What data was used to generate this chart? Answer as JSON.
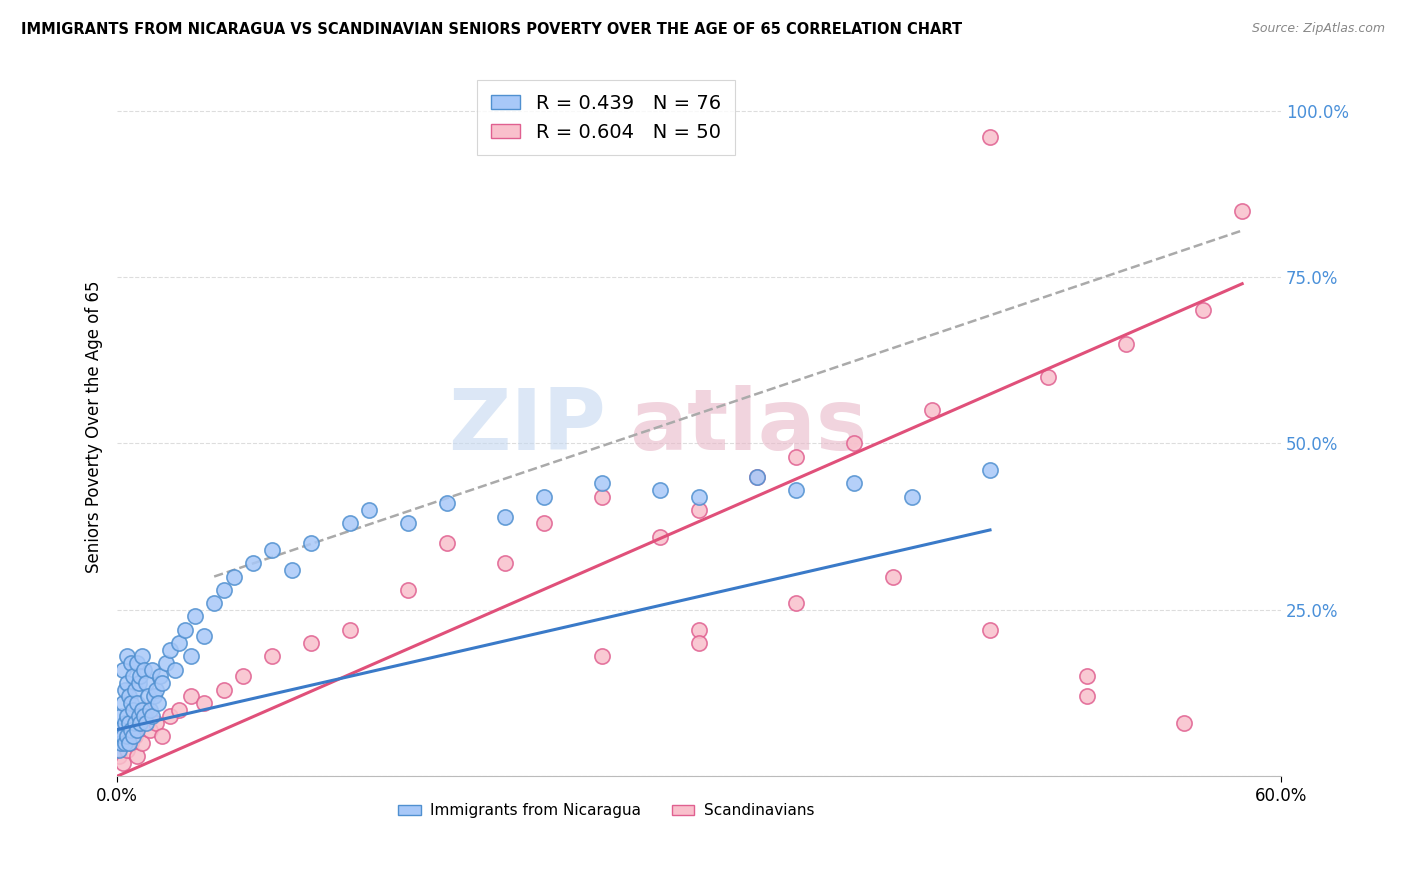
{
  "title": "IMMIGRANTS FROM NICARAGUA VS SCANDINAVIAN SENIORS POVERTY OVER THE AGE OF 65 CORRELATION CHART",
  "source": "Source: ZipAtlas.com",
  "ylabel": "Seniors Poverty Over the Age of 65",
  "y_ticks": [
    0.0,
    0.25,
    0.5,
    0.75,
    1.0
  ],
  "y_tick_labels": [
    "",
    "25.0%",
    "50.0%",
    "75.0%",
    "100.0%"
  ],
  "legend1_label": "R = 0.439   N = 76",
  "legend2_label": "R = 0.604   N = 50",
  "blue_face_color": "#a8c8f8",
  "pink_face_color": "#f9c0cc",
  "blue_edge_color": "#5090d0",
  "pink_edge_color": "#e06090",
  "blue_line_color": "#3a7ac8",
  "pink_line_color": "#e0507a",
  "gray_line_color": "#aaaaaa",
  "watermark_text": "ZIPatlas",
  "watermark_color_blue": "#c5d8f0",
  "watermark_color_pink": "#e8b8c8",
  "blue_scatter_x": [
    0.001,
    0.001,
    0.002,
    0.002,
    0.003,
    0.003,
    0.003,
    0.004,
    0.004,
    0.004,
    0.005,
    0.005,
    0.005,
    0.005,
    0.006,
    0.006,
    0.006,
    0.007,
    0.007,
    0.007,
    0.008,
    0.008,
    0.008,
    0.009,
    0.009,
    0.01,
    0.01,
    0.01,
    0.011,
    0.011,
    0.012,
    0.012,
    0.013,
    0.013,
    0.014,
    0.014,
    0.015,
    0.015,
    0.016,
    0.017,
    0.018,
    0.018,
    0.019,
    0.02,
    0.021,
    0.022,
    0.023,
    0.025,
    0.027,
    0.03,
    0.032,
    0.035,
    0.038,
    0.04,
    0.045,
    0.05,
    0.055,
    0.06,
    0.07,
    0.08,
    0.09,
    0.1,
    0.12,
    0.13,
    0.15,
    0.17,
    0.2,
    0.22,
    0.25,
    0.28,
    0.3,
    0.33,
    0.35,
    0.38,
    0.41,
    0.45
  ],
  "blue_scatter_y": [
    0.04,
    0.07,
    0.05,
    0.09,
    0.06,
    0.11,
    0.16,
    0.05,
    0.08,
    0.13,
    0.06,
    0.09,
    0.14,
    0.18,
    0.05,
    0.08,
    0.12,
    0.07,
    0.11,
    0.17,
    0.06,
    0.1,
    0.15,
    0.08,
    0.13,
    0.07,
    0.11,
    0.17,
    0.09,
    0.14,
    0.08,
    0.15,
    0.1,
    0.18,
    0.09,
    0.16,
    0.08,
    0.14,
    0.12,
    0.1,
    0.09,
    0.16,
    0.12,
    0.13,
    0.11,
    0.15,
    0.14,
    0.17,
    0.19,
    0.16,
    0.2,
    0.22,
    0.18,
    0.24,
    0.21,
    0.26,
    0.28,
    0.3,
    0.32,
    0.34,
    0.31,
    0.35,
    0.38,
    0.4,
    0.38,
    0.41,
    0.39,
    0.42,
    0.44,
    0.43,
    0.42,
    0.45,
    0.43,
    0.44,
    0.42,
    0.46
  ],
  "pink_scatter_x": [
    0.001,
    0.002,
    0.003,
    0.004,
    0.005,
    0.006,
    0.007,
    0.008,
    0.009,
    0.01,
    0.011,
    0.013,
    0.015,
    0.017,
    0.02,
    0.023,
    0.027,
    0.032,
    0.038,
    0.045,
    0.055,
    0.065,
    0.08,
    0.1,
    0.12,
    0.15,
    0.17,
    0.2,
    0.22,
    0.25,
    0.28,
    0.3,
    0.33,
    0.35,
    0.38,
    0.25,
    0.3,
    0.35,
    0.4,
    0.45,
    0.5,
    0.55,
    0.58,
    0.42,
    0.48,
    0.52,
    0.56,
    0.3,
    0.45,
    0.5
  ],
  "pink_scatter_y": [
    0.03,
    0.06,
    0.02,
    0.07,
    0.04,
    0.08,
    0.05,
    0.09,
    0.06,
    0.03,
    0.08,
    0.05,
    0.1,
    0.07,
    0.08,
    0.06,
    0.09,
    0.1,
    0.12,
    0.11,
    0.13,
    0.15,
    0.18,
    0.2,
    0.22,
    0.28,
    0.35,
    0.32,
    0.38,
    0.42,
    0.36,
    0.4,
    0.45,
    0.48,
    0.5,
    0.18,
    0.22,
    0.26,
    0.3,
    0.22,
    0.12,
    0.08,
    0.85,
    0.55,
    0.6,
    0.65,
    0.7,
    0.2,
    0.96,
    0.15
  ],
  "blue_trend_x": [
    0.0,
    0.45
  ],
  "blue_trend_y": [
    0.07,
    0.37
  ],
  "pink_trend_x": [
    0.0,
    0.58
  ],
  "pink_trend_y": [
    0.0,
    0.74
  ],
  "gray_trend_x": [
    0.05,
    0.58
  ],
  "gray_trend_y": [
    0.3,
    0.82
  ],
  "xlim": [
    0.0,
    0.6
  ],
  "ylim": [
    0.0,
    1.05
  ]
}
